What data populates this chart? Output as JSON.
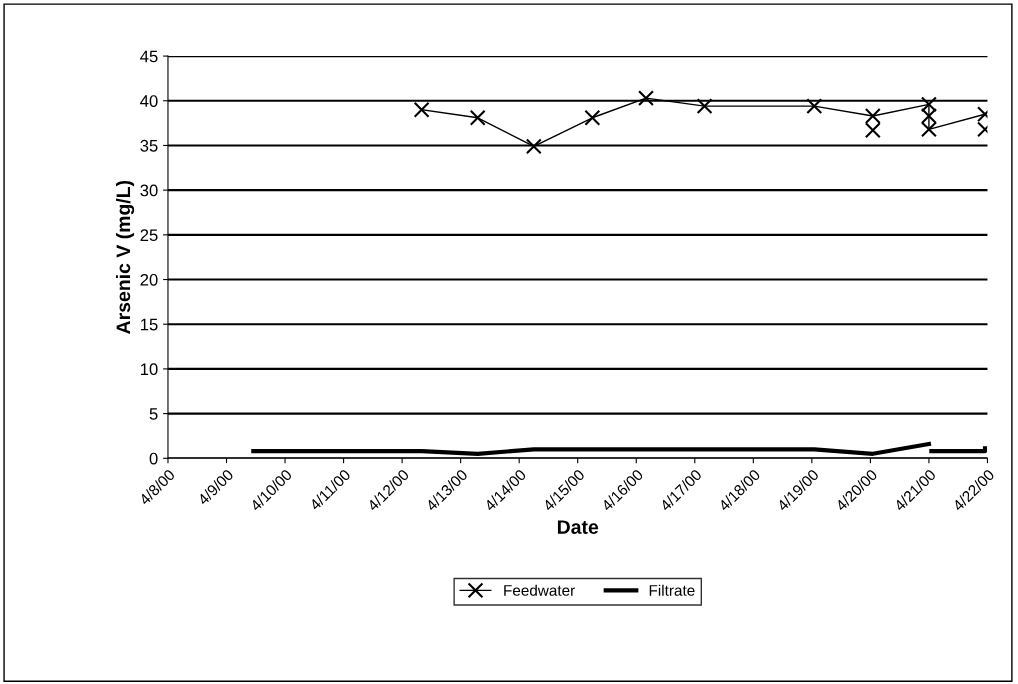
{
  "chart_data": {
    "type": "line",
    "xlabel": "Date",
    "ylabel": "Arsenic V (mg/L)",
    "xlim": [
      "2000-04-08",
      "2000-04-22"
    ],
    "xticks": [
      {
        "value": "2000-04-08",
        "label": "4/8/00"
      },
      {
        "value": "2000-04-09",
        "label": "4/9/00"
      },
      {
        "value": "2000-04-10",
        "label": "4/10/00"
      },
      {
        "value": "2000-04-11",
        "label": "4/11/00"
      },
      {
        "value": "2000-04-12",
        "label": "4/12/00"
      },
      {
        "value": "2000-04-13",
        "label": "4/13/00"
      },
      {
        "value": "2000-04-14",
        "label": "4/14/00"
      },
      {
        "value": "2000-04-15",
        "label": "4/15/00"
      },
      {
        "value": "2000-04-16",
        "label": "4/16/00"
      },
      {
        "value": "2000-04-17",
        "label": "4/17/00"
      },
      {
        "value": "2000-04-18",
        "label": "4/18/00"
      },
      {
        "value": "2000-04-19",
        "label": "4/19/00"
      },
      {
        "value": "2000-04-20",
        "label": "4/20/00"
      },
      {
        "value": "2000-04-21",
        "label": "4/21/00"
      },
      {
        "value": "2000-04-22",
        "label": "4/22/00"
      }
    ],
    "ylim": [
      0,
      45
    ],
    "yticks": [
      0,
      5,
      10,
      15,
      20,
      25,
      30,
      35,
      40,
      45
    ],
    "grid": "y",
    "legend": "bottom",
    "series": [
      {
        "name": "Feedwater",
        "color": "#000000",
        "marker": "cross",
        "line_style": "solid",
        "x": [
          "2000-04-12T08:00",
          "2000-04-13T07:00",
          "2000-04-14T06:00",
          "2000-04-15T06:00",
          "2000-04-16T04:00",
          "2000-04-17T04:00",
          "2000-04-19T01:00",
          "2000-04-20T01:00",
          "2000-04-21T00:00",
          "2000-04-21T00:00",
          "2000-04-21T23:00"
        ],
        "values": [
          39.0,
          38.1,
          34.9,
          38.1,
          40.3,
          39.4,
          39.4,
          38.3,
          39.6,
          36.8,
          38.5
        ]
      },
      {
        "type": "scatter",
        "color": "#000000",
        "marker": "cross",
        "x": [
          "2000-04-20T01:00",
          "2000-04-21T00:00",
          "2000-04-21T23:00"
        ],
        "values": [
          36.7,
          38.3,
          36.8
        ]
      },
      {
        "name": "Filtrate",
        "color": "#000000",
        "marker": "none",
        "line_style": "solid",
        "x": [
          "2000-04-09T11:00",
          "2000-04-12T08:00",
          "2000-04-13T07:00",
          "2000-04-14T06:00",
          "2000-04-19T01:00",
          "2000-04-20T01:00",
          "2000-04-21T00:00",
          "2000-04-21T00:30",
          "2000-04-21T01:00",
          "2000-04-21T23:00",
          "2000-04-21T23:00"
        ],
        "values": [
          0.8,
          0.8,
          0.5,
          1.0,
          1.0,
          0.5,
          1.6,
          null,
          0.8,
          0.8,
          1.1
        ]
      }
    ]
  }
}
